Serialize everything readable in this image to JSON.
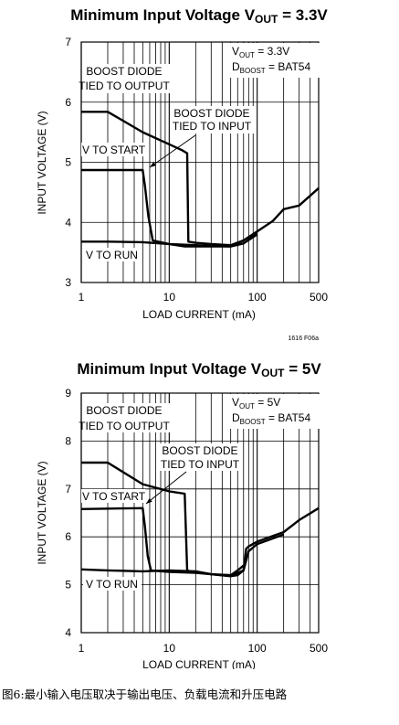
{
  "chart_data": [
    {
      "type": "line",
      "title": "Minimum Input Voltage V",
      "title_sub": "OUT",
      "title_tail": " = 3.3V",
      "xlabel": "LOAD CURRENT (mA)",
      "ylabel": "INPUT VOLTAGE (V)",
      "xscale": "log",
      "xlim": [
        1,
        500
      ],
      "ylim": [
        3,
        7
      ],
      "xticks": [
        1,
        10,
        100,
        500
      ],
      "xtick_labels": [
        "1",
        "10",
        "100",
        "500"
      ],
      "yticks": [
        3,
        4,
        5,
        6,
        7
      ],
      "ytick_labels": [
        "3",
        "4",
        "5",
        "6",
        "7"
      ],
      "grid": true,
      "legend": {
        "vout": "V",
        "vout_sub": "OUT",
        "vout_tail": " = 3.3V",
        "dboost": "D",
        "dboost_sub": "BOOST",
        "dboost_tail": " = BAT54"
      },
      "annotations": [
        "BOOST DIODE",
        "TIED TO OUTPUT",
        "BOOST DIODE",
        "TIED TO INPUT",
        "V TO START",
        "V TO RUN"
      ],
      "figure_id": "1616 F06a",
      "series": [
        {
          "x": [
            1,
            2,
            5,
            10,
            14,
            16,
            16.5,
            20,
            30,
            50,
            70,
            100,
            150,
            200,
            300,
            500
          ],
          "y": [
            5.84,
            5.84,
            5.5,
            5.3,
            5.2,
            5.15,
            3.68,
            3.66,
            3.64,
            3.62,
            3.7,
            3.85,
            4.02,
            4.22,
            4.28,
            4.57
          ]
        },
        {
          "x": [
            1,
            5,
            5.3,
            5.8,
            6.5,
            10,
            15,
            20,
            30,
            50,
            70,
            100
          ],
          "y": [
            4.87,
            4.87,
            4.6,
            4.1,
            3.7,
            3.64,
            3.6,
            3.6,
            3.6,
            3.6,
            3.7,
            3.83
          ]
        },
        {
          "x": [
            1,
            2,
            5,
            10,
            20,
            30,
            50,
            70,
            100
          ],
          "y": [
            3.68,
            3.68,
            3.67,
            3.64,
            3.62,
            3.61,
            3.6,
            3.65,
            3.8
          ]
        }
      ]
    },
    {
      "type": "line",
      "title": "Minimum Input Voltage V",
      "title_sub": "OUT",
      "title_tail": " = 5V",
      "xlabel": "LOAD CURRENT (mA)",
      "ylabel": "INPUT VOLTAGE (V)",
      "xscale": "log",
      "xlim": [
        1,
        500
      ],
      "ylim": [
        4,
        9
      ],
      "xticks": [
        1,
        10,
        100,
        500
      ],
      "xtick_labels": [
        "1",
        "10",
        "100",
        "500"
      ],
      "yticks": [
        4,
        5,
        6,
        7,
        8,
        9
      ],
      "ytick_labels": [
        "4",
        "5",
        "6",
        "7",
        "8",
        "9"
      ],
      "grid": true,
      "legend": {
        "vout": "V",
        "vout_sub": "OUT",
        "vout_tail": " = 5V",
        "dboost": "D",
        "dboost_sub": "BOOST",
        "dboost_tail": " = BAT54"
      },
      "annotations": [
        "BOOST DIODE",
        "TIED TO OUTPUT",
        "BOOST DIODE",
        "TIED TO INPUT",
        "V TO START",
        "V TO RUN"
      ],
      "series": [
        {
          "x": [
            1,
            2,
            5,
            10,
            15,
            16,
            17,
            20,
            30,
            50,
            70,
            75,
            80,
            100,
            200,
            300,
            500
          ],
          "y": [
            7.55,
            7.55,
            7.1,
            6.95,
            6.9,
            5.3,
            5.28,
            5.27,
            5.22,
            5.18,
            5.3,
            5.75,
            5.8,
            5.9,
            6.1,
            6.35,
            6.6
          ]
        },
        {
          "x": [
            1,
            5,
            5.3,
            5.7,
            6.2,
            10,
            20,
            30,
            50,
            60,
            70,
            80,
            100,
            200
          ],
          "y": [
            6.58,
            6.6,
            6.2,
            5.6,
            5.3,
            5.27,
            5.25,
            5.22,
            5.18,
            5.2,
            5.3,
            5.7,
            5.85,
            6.05
          ]
        },
        {
          "x": [
            1,
            2,
            5,
            10,
            20,
            30,
            50,
            60,
            70
          ],
          "y": [
            5.32,
            5.3,
            5.28,
            5.3,
            5.28,
            5.22,
            5.2,
            5.3,
            5.4
          ]
        }
      ]
    }
  ],
  "caption": "图6:最小输入电压取决于输出电压、负载电流和升压电路"
}
